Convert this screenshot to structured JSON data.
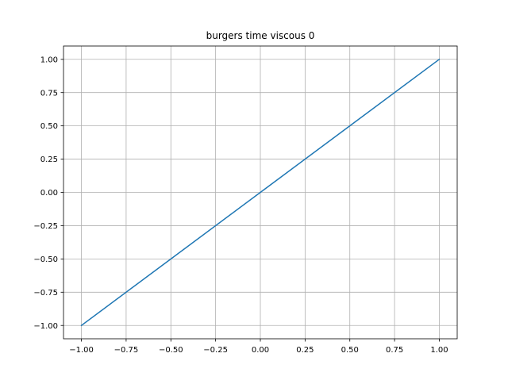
{
  "chart_data": {
    "type": "line",
    "title": "burgers time viscous 0",
    "xlabel": "",
    "ylabel": "",
    "xlim": [
      -1.1,
      1.1
    ],
    "ylim": [
      -1.1,
      1.1
    ],
    "grid": true,
    "x_ticks": [
      -1.0,
      -0.75,
      -0.5,
      -0.25,
      0.0,
      0.25,
      0.5,
      0.75,
      1.0
    ],
    "x_tick_labels": [
      "−1.00",
      "−0.75",
      "−0.50",
      "−0.25",
      "0.00",
      "0.25",
      "0.50",
      "0.75",
      "1.00"
    ],
    "y_ticks": [
      -1.0,
      -0.75,
      -0.5,
      -0.25,
      0.0,
      0.25,
      0.5,
      0.75,
      1.0
    ],
    "y_tick_labels": [
      "−1.00",
      "−0.75",
      "−0.50",
      "−0.25",
      "0.00",
      "0.25",
      "0.50",
      "0.75",
      "1.00"
    ],
    "series": [
      {
        "color": "#1f77b4",
        "x": [
          -1.0,
          -0.5,
          0.0,
          0.5,
          1.0
        ],
        "y": [
          -1.0,
          -0.5,
          0.0,
          0.5,
          1.0
        ]
      }
    ]
  }
}
